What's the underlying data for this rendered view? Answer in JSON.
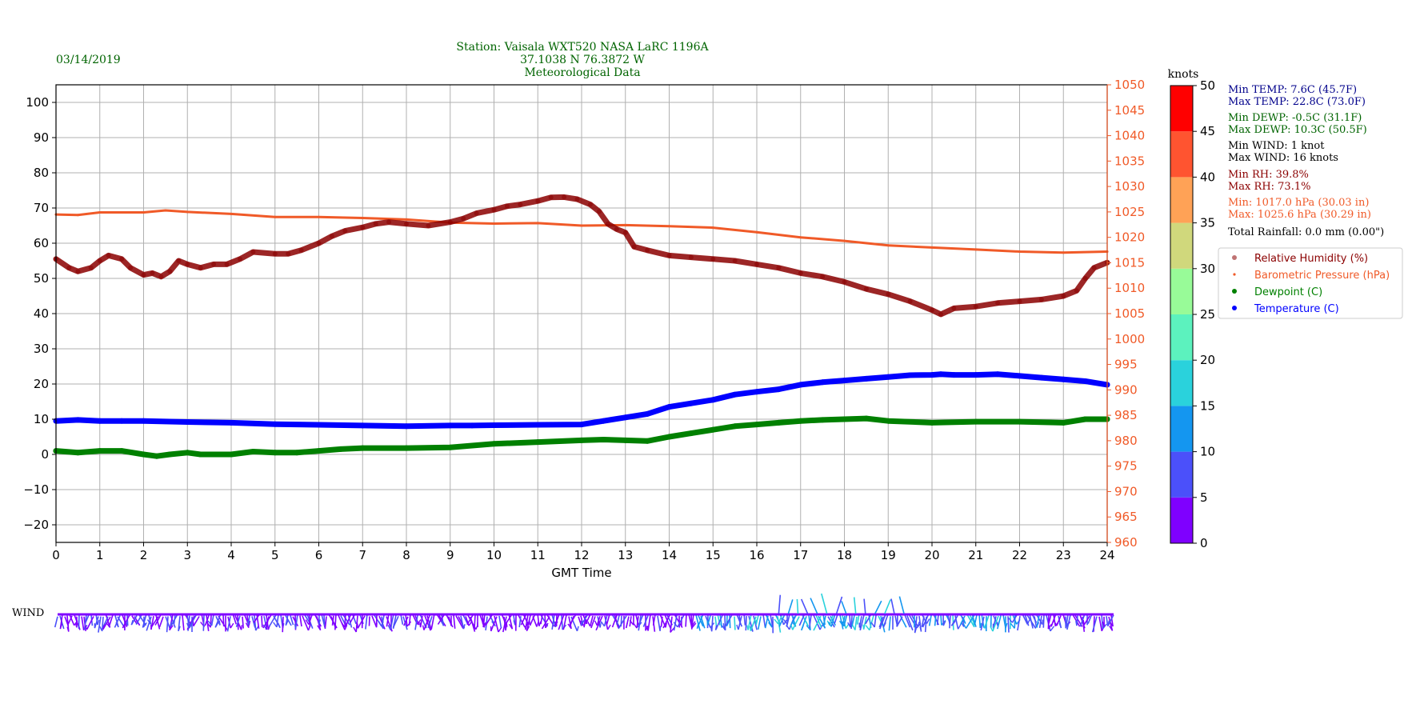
{
  "header": {
    "date": "03/14/2019",
    "station_line": "Station:  Vaisala WXT520  NASA LaRC 1196A",
    "coords_line": "37.1038 N 76.3872 W",
    "title_line": "Meteorological Data"
  },
  "colors": {
    "header": "#006400",
    "temperature": "#0000ff",
    "dewpoint": "#008000",
    "rh": "#8b0000",
    "pressure": "#f05a28",
    "axis": "#000000"
  },
  "stats": {
    "min_temp": "Min TEMP: 7.6C (45.7F)",
    "max_temp": "Max TEMP: 22.8C (73.0F)",
    "min_dewp": "Min DEWP: -0.5C (31.1F)",
    "max_dewp": "Max DEWP: 10.3C (50.5F)",
    "min_wind": "Min WIND: 1 knot",
    "max_wind": "Max WIND: 16 knots",
    "min_rh": "Min RH: 39.8%",
    "max_rh": "Max RH: 73.1%",
    "min_press": "Min: 1017.0 hPa (30.03 in)",
    "max_press": "Max: 1025.6 hPa (30.29 in)",
    "rainfall": "Total Rainfall: 0.0 mm (0.00\")"
  },
  "wind_label": "WIND",
  "colorbar": {
    "title": "knots",
    "ticks": [
      "0",
      "5",
      "10",
      "15",
      "20",
      "25",
      "30",
      "35",
      "40",
      "45",
      "50"
    ],
    "colors": [
      "#7f00ff",
      "#4b50fa",
      "#1496f0",
      "#2ad2dc",
      "#5cf2be",
      "#98fb98",
      "#d0d87c",
      "#ffa256",
      "#ff5430",
      "#ff0000"
    ]
  },
  "chart_data": {
    "type": "line",
    "xlabel": "GMT Time",
    "xlim": [
      0,
      24
    ],
    "x_ticks": [
      "0",
      "1",
      "2",
      "3",
      "4",
      "5",
      "6",
      "7",
      "8",
      "9",
      "10",
      "11",
      "12",
      "13",
      "14",
      "15",
      "16",
      "17",
      "18",
      "19",
      "20",
      "21",
      "22",
      "23",
      "24"
    ],
    "ylim_left": [
      -25,
      105
    ],
    "left_ticks": [
      "−20",
      "−10",
      "0",
      "10",
      "20",
      "30",
      "40",
      "50",
      "60",
      "70",
      "80",
      "90",
      "100"
    ],
    "ylim_right": [
      960,
      1050
    ],
    "right_ticks": [
      "960",
      "965",
      "970",
      "975",
      "980",
      "985",
      "990",
      "995",
      "1000",
      "1005",
      "1010",
      "1015",
      "1020",
      "1025",
      "1030",
      "1035",
      "1040",
      "1045",
      "1050"
    ],
    "grid": true,
    "legend_placement": "right",
    "series": [
      {
        "name": "Relative Humidity (%)",
        "axis": "left",
        "x": [
          0,
          0.3,
          0.5,
          0.8,
          1,
          1.2,
          1.5,
          1.7,
          2,
          2.2,
          2.4,
          2.6,
          2.8,
          3,
          3.3,
          3.6,
          3.9,
          4.2,
          4.5,
          5,
          5.3,
          5.6,
          6,
          6.3,
          6.6,
          7,
          7.3,
          7.6,
          8,
          8.5,
          9,
          9.3,
          9.6,
          10,
          10.3,
          10.6,
          11,
          11.3,
          11.6,
          11.9,
          12.2,
          12.4,
          12.6,
          12.8,
          13,
          13.2,
          13.5,
          14,
          14.5,
          15,
          15.5,
          16,
          16.5,
          17,
          17.5,
          18,
          18.5,
          19,
          19.5,
          20,
          20.2,
          20.5,
          21,
          21.5,
          22,
          22.5,
          23,
          23.3,
          23.5,
          23.7,
          24
        ],
        "values": [
          55.5,
          53,
          52,
          53,
          55,
          56.5,
          55.5,
          53,
          51,
          51.5,
          50.5,
          52,
          55,
          54,
          53,
          54,
          54,
          55.5,
          57.5,
          57,
          57,
          58,
          60,
          62,
          63.5,
          64.5,
          65.5,
          66,
          65.5,
          65,
          66,
          67,
          68.5,
          69.5,
          70.5,
          71,
          72,
          73,
          73.1,
          72.5,
          71,
          69,
          65.5,
          64,
          63,
          59,
          58,
          56.5,
          56,
          55.5,
          55,
          54,
          53,
          51.5,
          50.5,
          49,
          47,
          45.5,
          43.5,
          41,
          39.8,
          41.5,
          42,
          43,
          43.5,
          44,
          45,
          46.5,
          50,
          53,
          54.5
        ]
      },
      {
        "name": "Barometric Pressure (hPa)",
        "axis": "right",
        "x": [
          0,
          0.5,
          1,
          2,
          2.5,
          3,
          4,
          5,
          6,
          7,
          8,
          9,
          10,
          11,
          12,
          13,
          14,
          15,
          16,
          17,
          18,
          19,
          20,
          21,
          22,
          23,
          24
        ],
        "values": [
          1024.5,
          1024.4,
          1024.9,
          1024.9,
          1025.3,
          1025.0,
          1024.6,
          1024.0,
          1024.0,
          1023.8,
          1023.5,
          1022.9,
          1022.7,
          1022.8,
          1022.3,
          1022.4,
          1022.2,
          1021.9,
          1021.0,
          1020.0,
          1019.3,
          1018.4,
          1018.0,
          1017.6,
          1017.2,
          1017.0,
          1017.2
        ]
      },
      {
        "name": "Dewpoint (C)",
        "axis": "left",
        "x": [
          0,
          0.5,
          1,
          1.5,
          2,
          2.3,
          2.6,
          3,
          3.3,
          4,
          4.5,
          5,
          5.5,
          6,
          6.5,
          7,
          8,
          9,
          10,
          11,
          12,
          12.5,
          13,
          13.5,
          14,
          14.5,
          15,
          15.5,
          16,
          16.5,
          17,
          17.5,
          18,
          18.5,
          19,
          20,
          21,
          22,
          23,
          23.5,
          24
        ],
        "values": [
          1,
          0.5,
          1,
          1,
          0,
          -0.5,
          0,
          0.5,
          0,
          0,
          0.8,
          0.5,
          0.5,
          1,
          1.5,
          1.8,
          1.8,
          2,
          3,
          3.5,
          4,
          4.2,
          4,
          3.8,
          5,
          6,
          7,
          8,
          8.5,
          9,
          9.5,
          9.8,
          10,
          10.2,
          9.5,
          9,
          9.3,
          9.3,
          9,
          10,
          10
        ]
      },
      {
        "name": "Temperature (C)",
        "axis": "left",
        "x": [
          0,
          0.5,
          1,
          1.5,
          2,
          3,
          4,
          5,
          6,
          7,
          8,
          9,
          9.5,
          10,
          11,
          12,
          12.5,
          13,
          13.5,
          14,
          14.5,
          15,
          15.5,
          16,
          16.5,
          17,
          17.5,
          18,
          18.5,
          19,
          19.5,
          20,
          20.2,
          20.5,
          21,
          21.5,
          22,
          22.5,
          23,
          23.5,
          24
        ],
        "values": [
          9.5,
          9.8,
          9.5,
          9.5,
          9.5,
          9.2,
          9,
          8.6,
          8.4,
          8.2,
          8,
          8.2,
          8.2,
          8.3,
          8.4,
          8.5,
          9.5,
          10.5,
          11.5,
          13.5,
          14.5,
          15.5,
          17,
          17.8,
          18.5,
          19.8,
          20.5,
          21,
          21.5,
          22,
          22.5,
          22.6,
          22.8,
          22.6,
          22.6,
          22.8,
          22.3,
          21.8,
          21.3,
          20.8,
          19.8
        ]
      }
    ]
  }
}
